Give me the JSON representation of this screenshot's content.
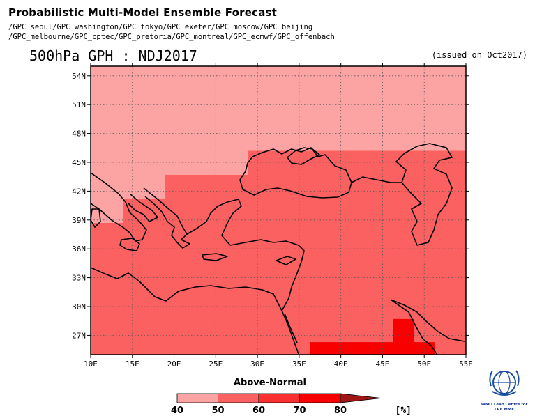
{
  "title": "Probabilistic Multi-Model Ensemble Forecast",
  "models_line1": "/GPC_seoul/GPC_washington/GPC_tokyo/GPC_exeter/GPC_moscow/GPC_beijing",
  "models_line2": "/GPC_melbourne/GPC_cptec/GPC_pretoria/GPC_montreal/GPC_ecmwf/GPC_offenbach",
  "subtitle": "500hPa GPH : NDJ2017",
  "issued": "(issued on Oct2017)",
  "map": {
    "lon_range": [
      10,
      55
    ],
    "lat_range": [
      25,
      55
    ],
    "lat_ticks": [
      {
        "value": 54,
        "label": "54N"
      },
      {
        "value": 51,
        "label": "51N"
      },
      {
        "value": 48,
        "label": "48N"
      },
      {
        "value": 45,
        "label": "45N"
      },
      {
        "value": 42,
        "label": "42N"
      },
      {
        "value": 39,
        "label": "39N"
      },
      {
        "value": 36,
        "label": "36N"
      },
      {
        "value": 33,
        "label": "33N"
      },
      {
        "value": 30,
        "label": "30N"
      },
      {
        "value": 27,
        "label": "27N"
      }
    ],
    "lon_ticks": [
      {
        "value": 10,
        "label": "10E"
      },
      {
        "value": 15,
        "label": "15E"
      },
      {
        "value": 20,
        "label": "20E"
      },
      {
        "value": 25,
        "label": "25E"
      },
      {
        "value": 30,
        "label": "30E"
      },
      {
        "value": 35,
        "label": "35E"
      },
      {
        "value": 40,
        "label": "40E"
      },
      {
        "value": 45,
        "label": "45E"
      },
      {
        "value": 50,
        "label": "50E"
      },
      {
        "value": 55,
        "label": "55E"
      }
    ],
    "probability_regions": [
      {
        "name": "prob-40-50-region",
        "category": "40-50",
        "polygon": [
          [
            10,
            55
          ],
          [
            55,
            55
          ],
          [
            55,
            46.2
          ],
          [
            28.9,
            46.2
          ],
          [
            28.9,
            43.7
          ],
          [
            18.9,
            43.7
          ],
          [
            18.9,
            41.2
          ],
          [
            13.9,
            41.2
          ],
          [
            13.9,
            38.7
          ],
          [
            10,
            38.7
          ]
        ]
      },
      {
        "name": "prob-50-60-region",
        "category": "50-60",
        "polygon": [
          [
            10,
            38.7
          ],
          [
            13.9,
            38.7
          ],
          [
            13.9,
            41.2
          ],
          [
            18.9,
            41.2
          ],
          [
            18.9,
            43.7
          ],
          [
            28.9,
            43.7
          ],
          [
            28.9,
            46.2
          ],
          [
            55,
            46.2
          ],
          [
            55,
            25
          ],
          [
            10,
            25
          ]
        ]
      },
      {
        "name": "prob-70-80-region-a",
        "category": "70-80",
        "polygon": [
          [
            36.3,
            26.3
          ],
          [
            46.3,
            26.3
          ],
          [
            46.3,
            25
          ],
          [
            36.3,
            25
          ]
        ]
      },
      {
        "name": "prob-70-80-region-b",
        "category": "70-80",
        "polygon": [
          [
            46.3,
            28.7
          ],
          [
            48.8,
            28.7
          ],
          [
            48.8,
            26.3
          ],
          [
            51.3,
            26.3
          ],
          [
            51.3,
            25
          ],
          [
            46.3,
            25
          ]
        ]
      }
    ]
  },
  "legend": {
    "title": "Above-Normal",
    "unit": "[%]",
    "bins": [
      {
        "from": 40,
        "to": 50,
        "color": "#fca3a3"
      },
      {
        "from": 50,
        "to": 60,
        "color": "#fb6161"
      },
      {
        "from": 60,
        "to": 70,
        "color": "#fa3030"
      },
      {
        "from": 70,
        "to": 80,
        "color": "#f80000"
      },
      {
        "from": 80,
        "to": null,
        "color": "#a01616"
      }
    ],
    "labels": [
      "40",
      "50",
      "60",
      "70",
      "80"
    ]
  },
  "logo": {
    "line1": "WMO Lead Centre for",
    "line2": "LRF MME"
  }
}
